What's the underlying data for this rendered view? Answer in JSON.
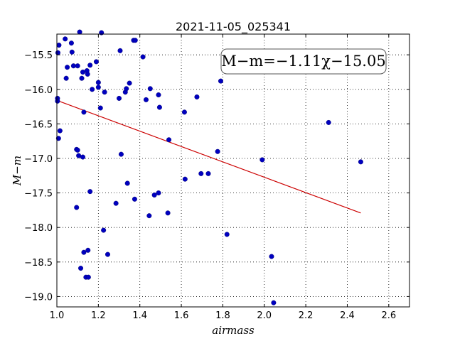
{
  "chart_data": {
    "type": "scatter",
    "title": "2021-11-05_025341",
    "xlabel": "airmass",
    "ylabel": "M−m",
    "xlim": [
      1.0,
      2.7
    ],
    "ylim": [
      -19.15,
      -15.2
    ],
    "xticks": [
      1.0,
      1.2,
      1.4,
      1.6,
      1.8,
      2.0,
      2.2,
      2.4,
      2.6
    ],
    "xtick_labels": [
      "1.0",
      "1.2",
      "1.4",
      "1.6",
      "1.8",
      "2.0",
      "2.2",
      "2.4",
      "2.6"
    ],
    "yticks": [
      -15.5,
      -16.0,
      -16.5,
      -17.0,
      -17.5,
      -18.0,
      -18.5,
      -19.0
    ],
    "ytick_labels": [
      "−15.5",
      "−16.0",
      "−16.5",
      "−17.0",
      "−17.5",
      "−18.0",
      "−18.5",
      "−19.0"
    ],
    "grid": true,
    "annotation": "M−m=−1.11χ−15.05",
    "colors": {
      "points": "#0000bf",
      "fit_line": "#cc0000"
    },
    "fit_line": {
      "x": [
        1.0,
        2.465
      ],
      "y": [
        -16.16,
        -17.79
      ]
    },
    "points": [
      {
        "x": 1.005,
        "y": -15.47
      },
      {
        "x": 1.01,
        "y": -15.36
      },
      {
        "x": 1.003,
        "y": -16.13
      },
      {
        "x": 1.003,
        "y": -16.17
      },
      {
        "x": 1.008,
        "y": -16.71
      },
      {
        "x": 1.015,
        "y": -16.6
      },
      {
        "x": 1.04,
        "y": -15.27
      },
      {
        "x": 1.045,
        "y": -15.84
      },
      {
        "x": 1.05,
        "y": -15.68
      },
      {
        "x": 1.07,
        "y": -15.33
      },
      {
        "x": 1.073,
        "y": -15.46
      },
      {
        "x": 1.08,
        "y": -15.66
      },
      {
        "x": 1.1,
        "y": -15.66
      },
      {
        "x": 1.11,
        "y": -15.17
      },
      {
        "x": 1.12,
        "y": -15.84
      },
      {
        "x": 1.125,
        "y": -15.75
      },
      {
        "x": 1.145,
        "y": -15.73
      },
      {
        "x": 1.148,
        "y": -15.78
      },
      {
        "x": 1.16,
        "y": -15.65
      },
      {
        "x": 1.17,
        "y": -16.0
      },
      {
        "x": 1.19,
        "y": -15.6
      },
      {
        "x": 1.2,
        "y": -15.9
      },
      {
        "x": 1.2,
        "y": -15.97
      },
      {
        "x": 1.21,
        "y": -16.27
      },
      {
        "x": 1.215,
        "y": -15.18
      },
      {
        "x": 1.23,
        "y": -16.04
      },
      {
        "x": 1.13,
        "y": -16.33
      },
      {
        "x": 1.095,
        "y": -16.87
      },
      {
        "x": 1.1,
        "y": -16.88
      },
      {
        "x": 1.105,
        "y": -16.96
      },
      {
        "x": 1.125,
        "y": -16.98
      },
      {
        "x": 1.16,
        "y": -17.48
      },
      {
        "x": 1.095,
        "y": -17.71
      },
      {
        "x": 1.15,
        "y": -18.33
      },
      {
        "x": 1.13,
        "y": -18.36
      },
      {
        "x": 1.115,
        "y": -18.59
      },
      {
        "x": 1.14,
        "y": -18.72
      },
      {
        "x": 1.152,
        "y": -18.72
      },
      {
        "x": 1.225,
        "y": -18.04
      },
      {
        "x": 1.245,
        "y": -18.39
      },
      {
        "x": 1.285,
        "y": -17.65
      },
      {
        "x": 1.3,
        "y": -16.13
      },
      {
        "x": 1.305,
        "y": -15.44
      },
      {
        "x": 1.31,
        "y": -16.94
      },
      {
        "x": 1.33,
        "y": -16.04
      },
      {
        "x": 1.335,
        "y": -15.99
      },
      {
        "x": 1.34,
        "y": -17.36
      },
      {
        "x": 1.35,
        "y": -15.91
      },
      {
        "x": 1.37,
        "y": -15.29
      },
      {
        "x": 1.378,
        "y": -15.29
      },
      {
        "x": 1.375,
        "y": -17.59
      },
      {
        "x": 1.415,
        "y": -15.53
      },
      {
        "x": 1.43,
        "y": -16.15
      },
      {
        "x": 1.45,
        "y": -15.99
      },
      {
        "x": 1.445,
        "y": -17.83
      },
      {
        "x": 1.47,
        "y": -17.53
      },
      {
        "x": 1.49,
        "y": -16.08
      },
      {
        "x": 1.495,
        "y": -16.26
      },
      {
        "x": 1.49,
        "y": -17.5
      },
      {
        "x": 1.535,
        "y": -17.79
      },
      {
        "x": 1.54,
        "y": -16.73
      },
      {
        "x": 1.615,
        "y": -16.33
      },
      {
        "x": 1.618,
        "y": -17.3
      },
      {
        "x": 1.675,
        "y": -16.11
      },
      {
        "x": 1.695,
        "y": -17.22
      },
      {
        "x": 1.73,
        "y": -17.22
      },
      {
        "x": 1.775,
        "y": -16.9
      },
      {
        "x": 1.79,
        "y": -15.88
      },
      {
        "x": 1.82,
        "y": -18.1
      },
      {
        "x": 1.99,
        "y": -17.02
      },
      {
        "x": 2.035,
        "y": -18.42
      },
      {
        "x": 2.045,
        "y": -19.09
      },
      {
        "x": 2.31,
        "y": -16.48
      },
      {
        "x": 2.465,
        "y": -17.05
      }
    ]
  }
}
